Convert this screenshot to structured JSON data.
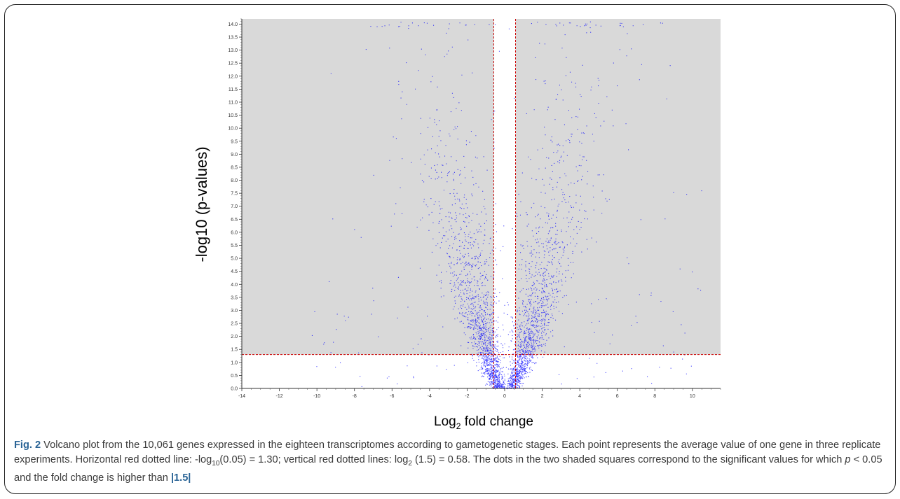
{
  "chart_data": {
    "type": "scatter",
    "title": "",
    "ylabel": "-log10 (p-values)",
    "xlabel_base": "Log",
    "xlabel_sub": "2",
    "xlabel_rest": " fold change",
    "xlim": [
      -14,
      11.5
    ],
    "ylim": [
      0,
      14.2
    ],
    "x_ticks": [
      "-14",
      "-12",
      "-10",
      "-8",
      "-6",
      "-4",
      "-2",
      "0",
      "2",
      "4",
      "6",
      "8",
      "10"
    ],
    "y_ticks": [
      "0.0",
      "0.5",
      "1.0",
      "1.5",
      "2.0",
      "2.5",
      "3.0",
      "3.5",
      "4.0",
      "4.5",
      "5.0",
      "5.5",
      "6.0",
      "6.5",
      "7.0",
      "7.5",
      "8.0",
      "8.5",
      "9.0",
      "9.5",
      "10.0",
      "10.5",
      "11.0",
      "11.5",
      "12.0",
      "12.5",
      "13.0",
      "13.5",
      "14.0"
    ],
    "thresholds": {
      "horizontal_y": 1.3,
      "vertical_x": [
        -0.58,
        0.58
      ]
    },
    "genes_count": 10061,
    "point_color": "#0000ff",
    "threshold_color": "#cc0000",
    "shade_color": "#d9d9d9",
    "grid": false,
    "legend": "none"
  },
  "caption": {
    "fig_label": "Fig. 2",
    "text_1": " Volcano plot from the 10,061 genes expressed in the eighteen transcriptomes according to gametogenetic stages. Each point represents the average value of one gene in three replicate experiments. Horizontal red dotted line: -log",
    "sub_1": "10",
    "text_2": "(0.05) = 1.30; vertical red dotted lines: log",
    "sub_2": "2",
    "text_3": " (1.5) = 0.58. The dots in the two shaded squares correspond to the significant values for which ",
    "p_symbol": "p",
    "text_4": " < 0.05 and the fold change is higher than ",
    "text_5": "|1.5|"
  }
}
